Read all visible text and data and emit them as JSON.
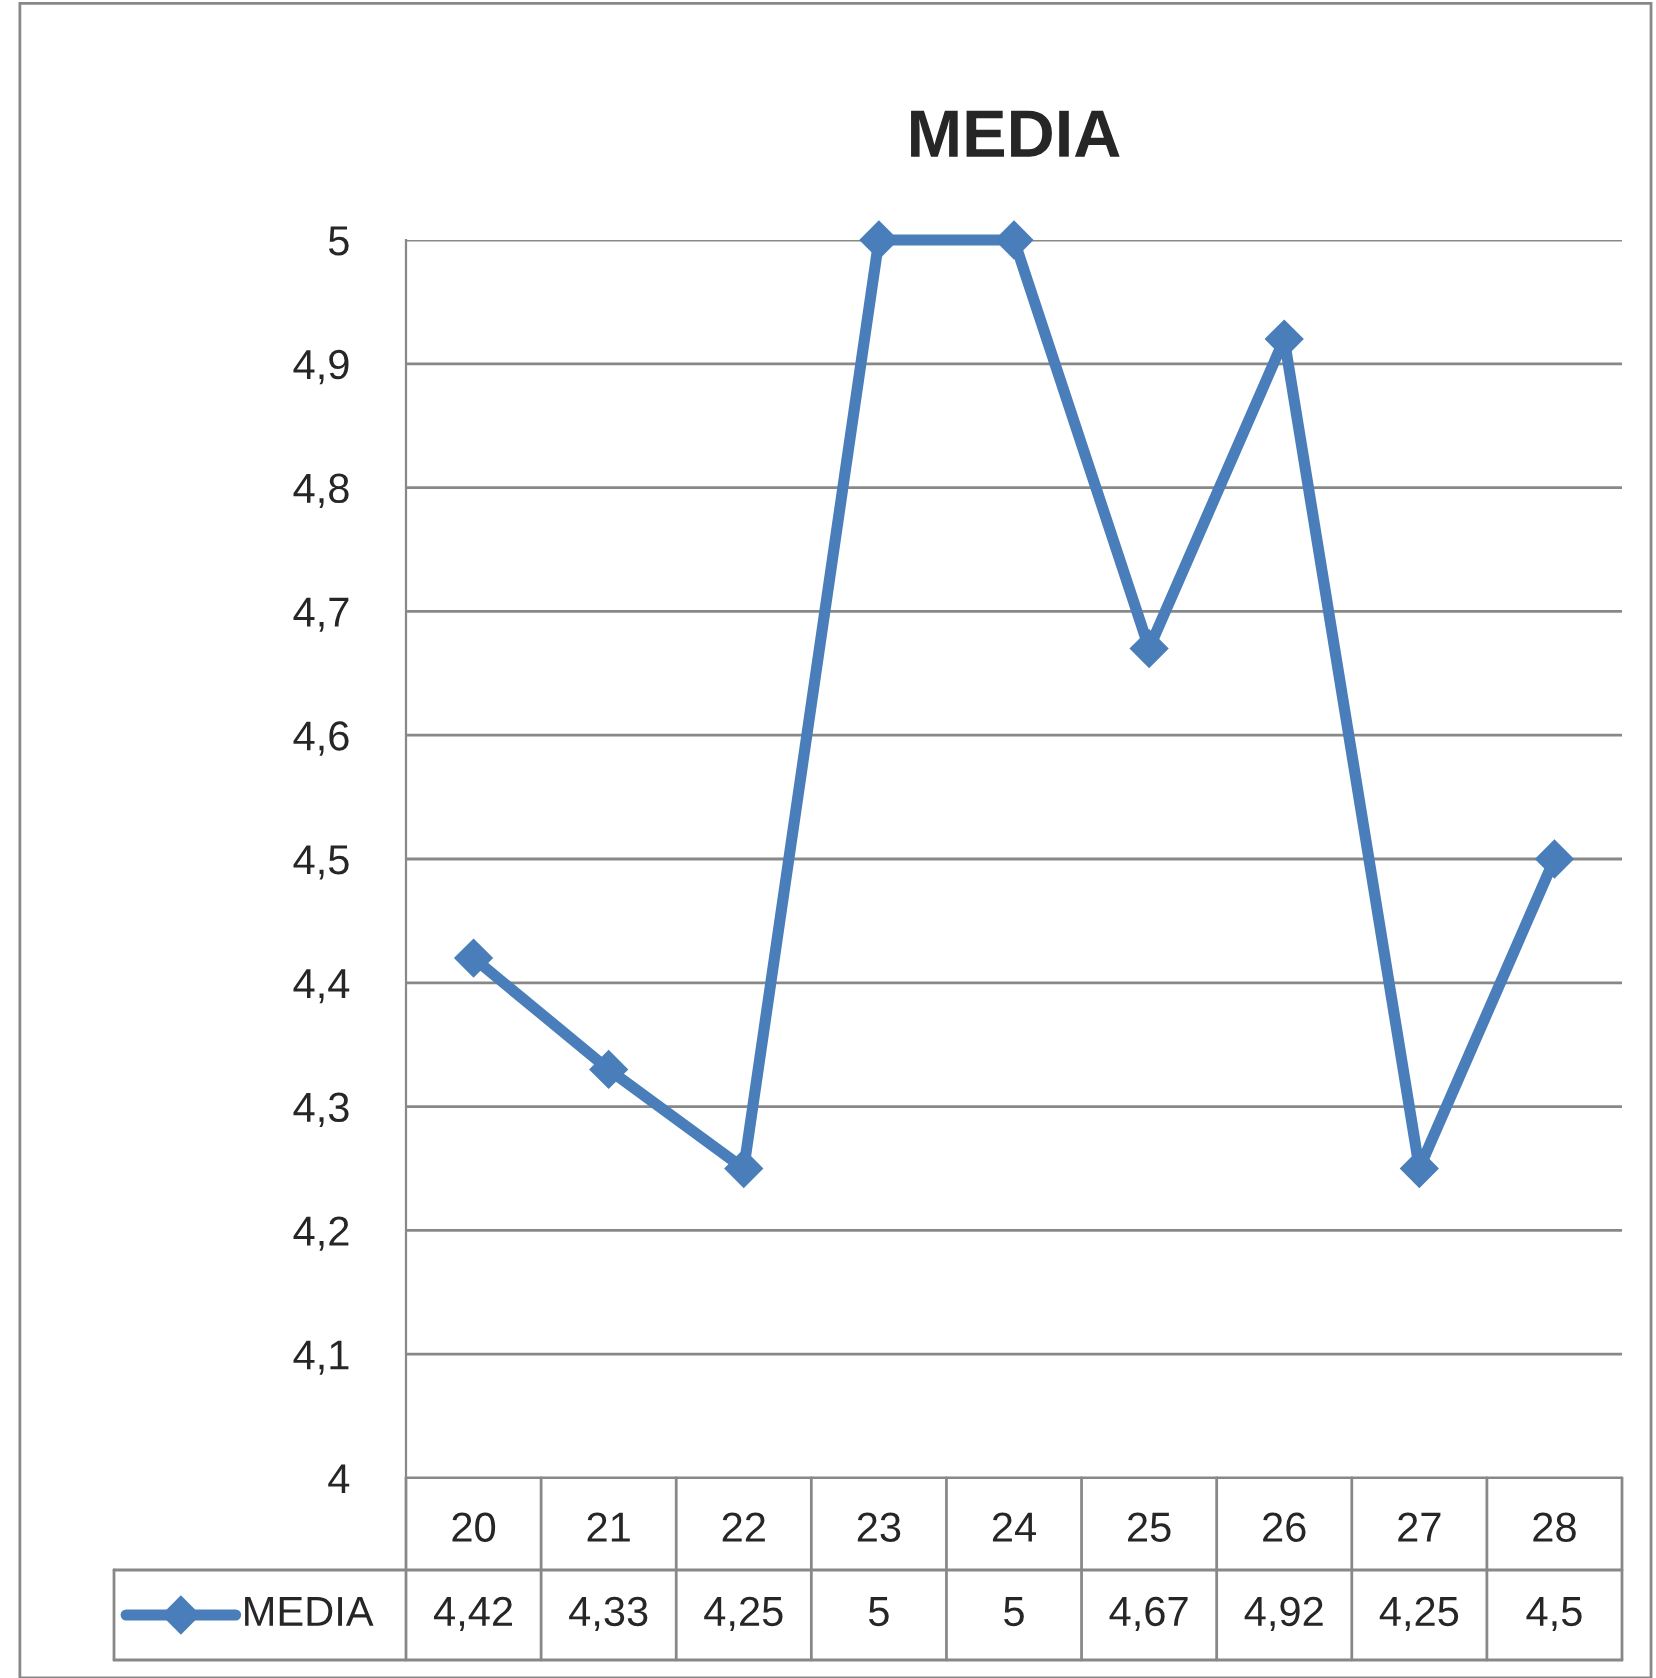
{
  "chart_data": {
    "type": "line",
    "title": "MEDIA",
    "categories": [
      "20",
      "21",
      "22",
      "23",
      "24",
      "25",
      "26",
      "27",
      "28"
    ],
    "series": [
      {
        "name": "MEDIA",
        "color": "#4a7ebb",
        "values": [
          4.42,
          4.33,
          4.25,
          5,
          5,
          4.67,
          4.92,
          4.25,
          4.5
        ],
        "value_labels": [
          "4,42",
          "4,33",
          "4,25",
          "5",
          "5",
          "4,67",
          "4,92",
          "4,25",
          "4,5"
        ]
      }
    ],
    "ylim": [
      4,
      5
    ],
    "yticks": [
      {
        "value": 4,
        "label": "4"
      },
      {
        "value": 4.1,
        "label": "4,1"
      },
      {
        "value": 4.2,
        "label": "4,2"
      },
      {
        "value": 4.3,
        "label": "4,3"
      },
      {
        "value": 4.4,
        "label": "4,4"
      },
      {
        "value": 4.5,
        "label": "4,5"
      },
      {
        "value": 4.6,
        "label": "4,6"
      },
      {
        "value": 4.7,
        "label": "4,7"
      },
      {
        "value": 4.8,
        "label": "4,8"
      },
      {
        "value": 4.9,
        "label": "4,9"
      },
      {
        "value": 5,
        "label": "5"
      }
    ],
    "grid": "y",
    "legend": "bottom",
    "marker": "diamond",
    "line_style": "solid"
  }
}
